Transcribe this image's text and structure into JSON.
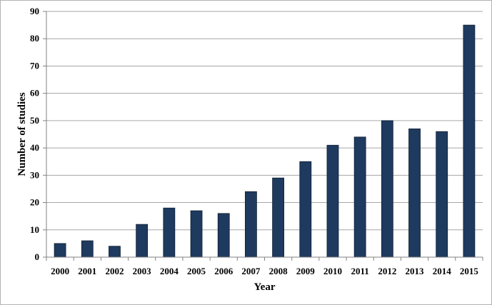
{
  "chart_data": {
    "type": "bar",
    "categories": [
      "2000",
      "2001",
      "2002",
      "2003",
      "2004",
      "2005",
      "2006",
      "2007",
      "2008",
      "2009",
      "2010",
      "2011",
      "2012",
      "2013",
      "2014",
      "2015"
    ],
    "values": [
      5,
      6,
      4,
      12,
      18,
      17,
      16,
      24,
      29,
      35,
      41,
      44,
      50,
      47,
      46,
      85
    ],
    "xlabel": "Year",
    "ylabel": "Number of studies",
    "ylim": [
      0,
      90
    ],
    "yticks": [
      0,
      10,
      20,
      30,
      40,
      50,
      60,
      70,
      80,
      90
    ],
    "grid": true,
    "legend": "none",
    "colors": {
      "bar": "#1f3a5f",
      "bar_edge": "#0f1f35",
      "grid": "#a6a6a6",
      "axis": "#808080"
    }
  }
}
